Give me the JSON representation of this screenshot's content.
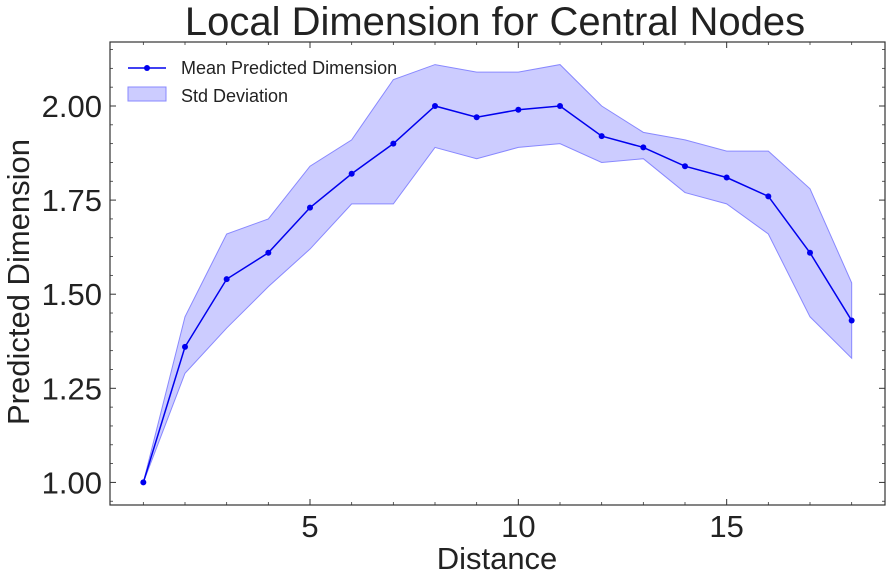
{
  "chart_data": {
    "type": "line",
    "title": "Local Dimension for Central Nodes",
    "xlabel": "Distance",
    "ylabel": "Predicted Dimension",
    "xlim": [
      0.2,
      18.8
    ],
    "ylim": [
      0.94,
      2.17
    ],
    "xticks": [
      5,
      10,
      15
    ],
    "yticks": [
      1.0,
      1.25,
      1.5,
      1.75,
      2.0
    ],
    "ytick_labels": [
      "1.00",
      "1.25",
      "1.50",
      "1.75",
      "2.00"
    ],
    "grid": false,
    "legend_position": "top-left",
    "colors": {
      "line": "#0000ee",
      "band": "#aaaaff"
    },
    "series": [
      {
        "name": "Mean Predicted Dimension",
        "x": [
          1,
          2,
          3,
          4,
          5,
          6,
          7,
          8,
          9,
          10,
          11,
          12,
          13,
          14,
          15,
          16,
          17,
          18
        ],
        "y": [
          1.0,
          1.36,
          1.54,
          1.61,
          1.73,
          1.82,
          1.9,
          2.0,
          1.97,
          1.99,
          2.0,
          1.92,
          1.89,
          1.84,
          1.81,
          1.76,
          1.61,
          1.43
        ]
      }
    ],
    "band": {
      "name": "Std Deviation",
      "x": [
        1,
        2,
        3,
        4,
        5,
        6,
        7,
        8,
        9,
        10,
        11,
        12,
        13,
        14,
        15,
        16,
        17,
        18
      ],
      "lower": [
        1.0,
        1.29,
        1.41,
        1.52,
        1.62,
        1.74,
        1.74,
        1.89,
        1.86,
        1.89,
        1.9,
        1.85,
        1.86,
        1.77,
        1.74,
        1.66,
        1.44,
        1.33
      ],
      "upper": [
        1.0,
        1.44,
        1.66,
        1.7,
        1.84,
        1.91,
        2.07,
        2.11,
        2.09,
        2.09,
        2.11,
        2.0,
        1.93,
        1.91,
        1.88,
        1.88,
        1.78,
        1.53
      ]
    }
  }
}
